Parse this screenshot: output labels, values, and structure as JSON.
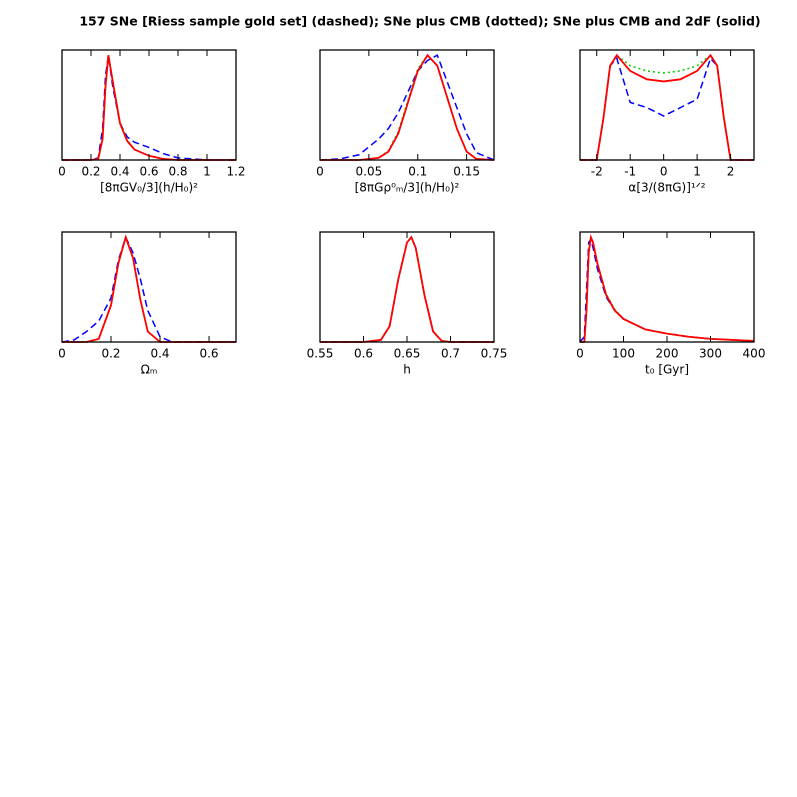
{
  "title": "157 SNe [Riess sample gold set] (dashed); SNe plus CMB (dotted); SNe plus CMB and 2dF (solid)",
  "chart_data": [
    {
      "type": "line",
      "xlabel": "[8πGV₀/3](h/H₀)²",
      "xlim": [
        0,
        1.2
      ],
      "xticks": [
        0,
        0.2,
        0.4,
        0.6,
        0.8,
        1,
        1.2
      ],
      "ylim": [
        0,
        1.05
      ],
      "x": [
        0,
        0.2,
        0.25,
        0.28,
        0.3,
        0.32,
        0.35,
        0.4,
        0.45,
        0.5,
        0.6,
        0.7,
        0.8,
        1.0,
        1.2
      ],
      "series": [
        {
          "color": "#0000ff",
          "style": "dashed",
          "values": [
            0,
            0,
            0.02,
            0.3,
            0.8,
            1.0,
            0.7,
            0.35,
            0.22,
            0.17,
            0.12,
            0.06,
            0.02,
            0,
            0
          ]
        },
        {
          "color": "#00cc00",
          "style": "dotted",
          "values": [
            0,
            0,
            0.01,
            0.2,
            0.7,
            1.0,
            0.75,
            0.36,
            0.19,
            0.1,
            0.04,
            0.01,
            0,
            0,
            0
          ]
        },
        {
          "color": "#ff0000",
          "style": "solid",
          "values": [
            0,
            0,
            0.01,
            0.2,
            0.7,
            1.0,
            0.75,
            0.35,
            0.18,
            0.1,
            0.04,
            0.01,
            0,
            0,
            0
          ]
        }
      ]
    },
    {
      "type": "line",
      "xlabel": "[8πGρ⁰ₘ/3](h/H₀)²",
      "xlim": [
        0,
        0.178
      ],
      "xticks": [
        0,
        0.05,
        0.1,
        0.15
      ],
      "ylim": [
        0,
        1.05
      ],
      "x": [
        0,
        0.02,
        0.04,
        0.06,
        0.07,
        0.08,
        0.09,
        0.1,
        0.11,
        0.12,
        0.13,
        0.14,
        0.15,
        0.16,
        0.178
      ],
      "series": [
        {
          "color": "#0000ff",
          "style": "dashed",
          "values": [
            0,
            0.01,
            0.05,
            0.2,
            0.3,
            0.45,
            0.65,
            0.85,
            0.95,
            1.0,
            0.75,
            0.5,
            0.25,
            0.07,
            0
          ]
        },
        {
          "color": "#00cc00",
          "style": "dotted",
          "values": [
            0,
            0,
            0,
            0.02,
            0.09,
            0.27,
            0.57,
            0.87,
            1.0,
            0.9,
            0.6,
            0.3,
            0.08,
            0.01,
            0
          ]
        },
        {
          "color": "#ff0000",
          "style": "solid",
          "values": [
            0,
            0,
            0,
            0.02,
            0.08,
            0.25,
            0.55,
            0.85,
            1.0,
            0.9,
            0.6,
            0.3,
            0.08,
            0.01,
            0
          ]
        }
      ]
    },
    {
      "type": "line",
      "xlabel": "α[3/(8πG)]¹ᐟ²",
      "xlim": [
        -2.5,
        2.7
      ],
      "xticks": [
        -2,
        -1,
        0,
        1,
        2
      ],
      "ylim": [
        0,
        1.05
      ],
      "x": [
        -2.5,
        -2.0,
        -1.8,
        -1.6,
        -1.4,
        -1,
        -0.5,
        0,
        0.5,
        1,
        1.4,
        1.6,
        1.8,
        2.0,
        2.7
      ],
      "series": [
        {
          "color": "#0000ff",
          "style": "dashed",
          "values": [
            0,
            0,
            0.4,
            0.9,
            0.97,
            0.55,
            0.5,
            0.42,
            0.5,
            0.58,
            0.97,
            0.9,
            0.4,
            0,
            0
          ]
        },
        {
          "color": "#00cc00",
          "style": "dotted",
          "values": [
            0,
            0,
            0.4,
            0.9,
            1.0,
            0.9,
            0.85,
            0.83,
            0.85,
            0.9,
            1.0,
            0.9,
            0.4,
            0,
            0
          ]
        },
        {
          "color": "#ff0000",
          "style": "solid",
          "values": [
            0,
            0,
            0.4,
            0.9,
            1.0,
            0.85,
            0.77,
            0.75,
            0.77,
            0.85,
            1.0,
            0.9,
            0.4,
            0,
            0
          ]
        }
      ]
    },
    {
      "type": "line",
      "xlabel": "Ωₘ",
      "xlim": [
        0,
        0.71
      ],
      "xticks": [
        0,
        0.2,
        0.4,
        0.6
      ],
      "ylim": [
        0,
        1.05
      ],
      "x": [
        0,
        0.05,
        0.1,
        0.15,
        0.2,
        0.23,
        0.26,
        0.29,
        0.32,
        0.35,
        0.4,
        0.45,
        0.5,
        0.6,
        0.71
      ],
      "series": [
        {
          "color": "#0000ff",
          "style": "dashed",
          "values": [
            0,
            0.02,
            0.1,
            0.2,
            0.42,
            0.78,
            1.0,
            0.85,
            0.6,
            0.3,
            0.05,
            0,
            0,
            0,
            0
          ]
        },
        {
          "color": "#00cc00",
          "style": "dotted",
          "values": [
            0,
            0,
            0,
            0.03,
            0.36,
            0.76,
            1.0,
            0.8,
            0.41,
            0.1,
            0,
            0,
            0,
            0,
            0
          ]
        },
        {
          "color": "#ff0000",
          "style": "solid",
          "values": [
            0,
            0,
            0,
            0.03,
            0.35,
            0.75,
            1.0,
            0.8,
            0.4,
            0.1,
            0,
            0,
            0,
            0,
            0
          ]
        }
      ]
    },
    {
      "type": "line",
      "xlabel": "h",
      "xlim": [
        0.55,
        0.75
      ],
      "xticks": [
        0.55,
        0.6,
        0.65,
        0.7,
        0.75
      ],
      "ylim": [
        0,
        1.05
      ],
      "x": [
        0.55,
        0.6,
        0.62,
        0.63,
        0.64,
        0.65,
        0.655,
        0.66,
        0.67,
        0.68,
        0.69,
        0.7,
        0.75
      ],
      "series": [
        {
          "color": "#0000ff",
          "style": "dashed",
          "values": [
            0,
            0,
            0.02,
            0.15,
            0.6,
            0.95,
            1.0,
            0.9,
            0.45,
            0.1,
            0.01,
            0,
            0
          ]
        },
        {
          "color": "#00cc00",
          "style": "dotted",
          "values": [
            0,
            0,
            0.02,
            0.15,
            0.6,
            0.95,
            1.0,
            0.9,
            0.45,
            0.1,
            0.01,
            0,
            0
          ]
        },
        {
          "color": "#ff0000",
          "style": "solid",
          "values": [
            0,
            0,
            0.02,
            0.15,
            0.6,
            0.95,
            1.0,
            0.9,
            0.45,
            0.1,
            0.01,
            0,
            0
          ]
        }
      ]
    },
    {
      "type": "line",
      "xlabel": "t₀ [Gyr]",
      "xlim": [
        0,
        400
      ],
      "xticks": [
        0,
        100,
        200,
        300,
        400
      ],
      "ylim": [
        0,
        1.05
      ],
      "x": [
        0,
        10,
        15,
        20,
        25,
        30,
        40,
        60,
        80,
        100,
        150,
        200,
        250,
        300,
        400
      ],
      "series": [
        {
          "color": "#0000ff",
          "style": "dashed",
          "values": [
            0,
            0.05,
            0.5,
            0.95,
            0.98,
            0.9,
            0.7,
            0.43,
            0.3,
            0.22,
            0.12,
            0.08,
            0.05,
            0.03,
            0.01
          ]
        },
        {
          "color": "#00cc00",
          "style": "dotted",
          "values": [
            0,
            0,
            0.3,
            0.85,
            1.0,
            0.95,
            0.75,
            0.46,
            0.31,
            0.22,
            0.12,
            0.08,
            0.05,
            0.03,
            0.01
          ]
        },
        {
          "color": "#ff0000",
          "style": "solid",
          "values": [
            0,
            0,
            0.3,
            0.85,
            1.0,
            0.95,
            0.75,
            0.45,
            0.3,
            0.22,
            0.12,
            0.08,
            0.05,
            0.03,
            0.01
          ]
        }
      ]
    }
  ]
}
